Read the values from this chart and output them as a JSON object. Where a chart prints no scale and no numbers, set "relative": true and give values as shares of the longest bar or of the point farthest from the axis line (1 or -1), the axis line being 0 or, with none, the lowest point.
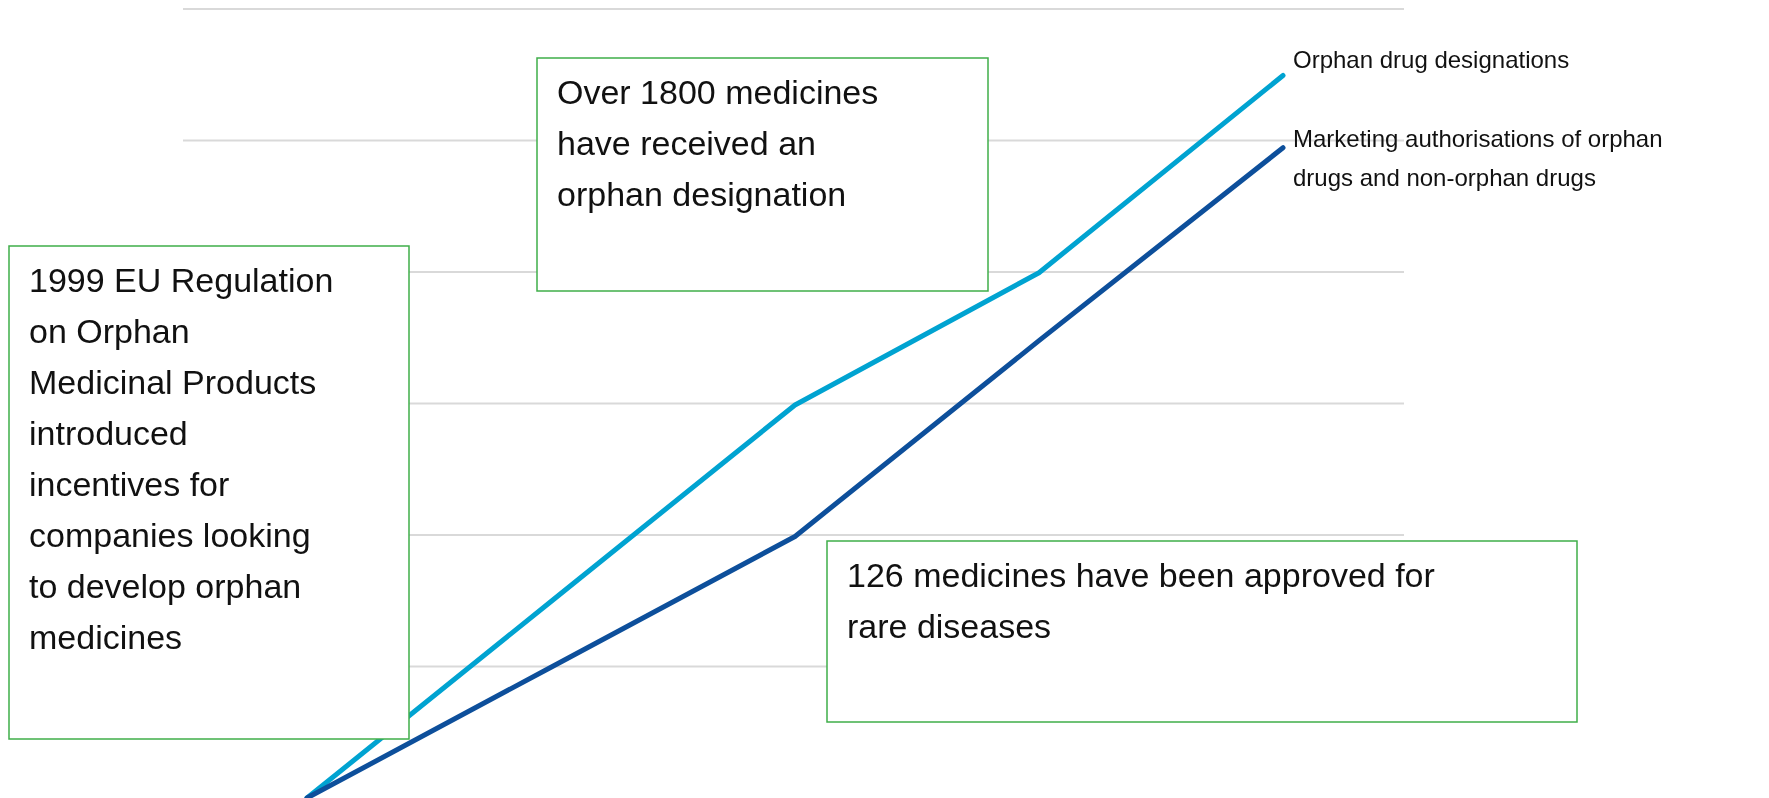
{
  "chart_data": {
    "type": "line",
    "relative": true,
    "grid": true,
    "categories": [
      null,
      null,
      null,
      null,
      null
    ],
    "series": [
      {
        "name": "Orphan drug designations",
        "color": "#00a3d1",
        "values": [
          0,
          0.272,
          0.544,
          0.727,
          1
        ]
      },
      {
        "name": "Marketing authorisations of orphan drugs and non-orphan drugs",
        "color": "#0d4f9b",
        "values": [
          0,
          0.181,
          0.362,
          0.633,
          0.9
        ]
      }
    ],
    "annotations": [
      "1999 EU Regulation on Orphan Medicinal Products introduced incentives for companies looking to develop orphan medicines",
      "Over 1800 medicines have received an orphan designation",
      "126 medicines have been approved for rare diseases"
    ]
  }
}
